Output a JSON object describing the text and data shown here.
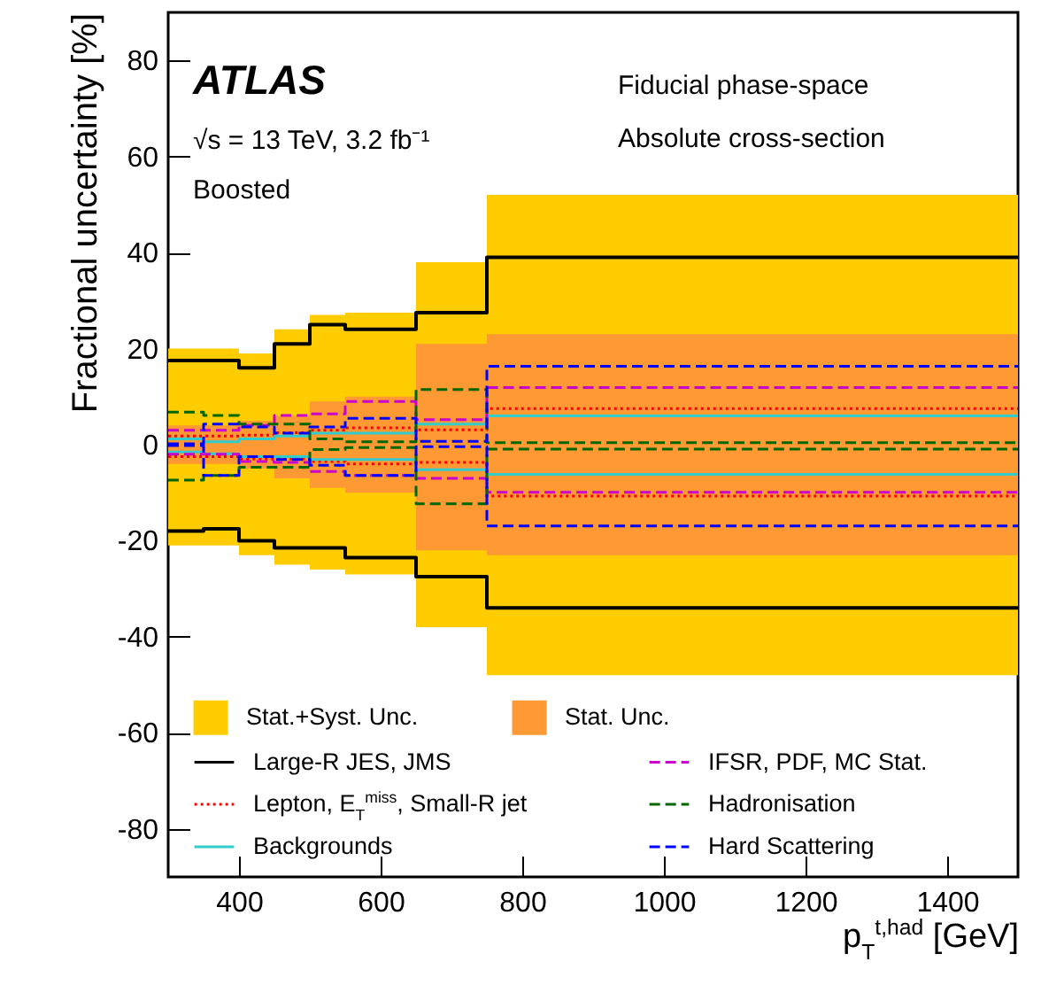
{
  "chart_data": {
    "type": "step",
    "xlabel": "p$_{T}$$^{t,had}$ [GeV]",
    "ylabel": "Fractional uncertainty [%]",
    "annotations": [
      "ATLAS",
      "√s = 13 TeV, 3.2 fb⁻¹",
      "Boosted",
      "Fiducial phase-space",
      "Absolute cross-section"
    ],
    "x": [
      300,
      350,
      400,
      450,
      500,
      550,
      650,
      750,
      1500
    ],
    "xlim": [
      300,
      1500
    ],
    "xticks": [
      400,
      600,
      800,
      1000,
      1200,
      1400
    ],
    "ylim": [
      -90,
      90
    ],
    "yticks": [
      -80,
      -60,
      -40,
      -20,
      0,
      20,
      40,
      60,
      80
    ],
    "grid": false,
    "legend": "bottom",
    "series": [
      {
        "name": "Stat.+Syst. Unc.",
        "type": "area",
        "color": "#ffcc00",
        "values": [
          20,
          20,
          19,
          24,
          27,
          27.5,
          38,
          52,
          52
        ]
      },
      {
        "type": "area",
        "color": "#ffcc00",
        "values": [
          -21,
          -21,
          -23,
          -25,
          -26,
          -27,
          -38,
          -48,
          -48
        ]
      },
      {
        "name": "Stat. Unc.",
        "type": "area",
        "color": "#ff9933",
        "values": [
          4,
          4,
          5,
          6,
          9,
          10,
          21,
          23,
          23
        ]
      },
      {
        "type": "area",
        "color": "#ff9933",
        "values": [
          -4,
          -4,
          -5,
          -7,
          -9,
          -10,
          -22,
          -23,
          -23
        ]
      },
      {
        "name": "Large-R JES, JMS",
        "color": "#000000",
        "line_style": "solid",
        "values": [
          17.5,
          17.5,
          16,
          21,
          25,
          24,
          27.5,
          39,
          39
        ]
      },
      {
        "color": "#000000",
        "line_style": "solid",
        "values": [
          -18,
          -17.5,
          -20,
          -21.5,
          -21.5,
          -23.5,
          -27.5,
          -34,
          -34
        ]
      },
      {
        "name": "Lepton, E$_{T}$$^{miss}$, Small-R jet",
        "color": "#ff0000",
        "line_style": "dotted",
        "values": [
          1.8,
          1.8,
          2,
          2.5,
          3,
          3.5,
          3.1,
          7.5,
          7.5
        ]
      },
      {
        "color": "#ff0000",
        "line_style": "dotted",
        "values": [
          -2.5,
          -2.5,
          -3,
          -3,
          -3.5,
          -4,
          -3.7,
          -10.7,
          -10.7
        ]
      },
      {
        "name": "Backgrounds",
        "color": "#33cccc",
        "line_style": "solid",
        "values": [
          1.2,
          0.6,
          1.2,
          1.8,
          2.4,
          2.4,
          4.3,
          6,
          6
        ]
      },
      {
        "color": "#33cccc",
        "line_style": "solid",
        "values": [
          -1.5,
          -1.9,
          -2.5,
          -2.5,
          -3.1,
          -3.1,
          -5.2,
          -6.2,
          -6.2
        ]
      },
      {
        "name": "IFSR, PDF, MC Stat.",
        "color": "#cc00cc",
        "line_style": "dashed",
        "values": [
          3,
          3,
          4,
          6.1,
          6.4,
          9,
          5.2,
          11.9,
          11.9
        ]
      },
      {
        "color": "#cc00cc",
        "line_style": "dashed",
        "values": [
          -2,
          -2,
          -3.5,
          -3.7,
          -5.6,
          -6.4,
          -7,
          -9.9,
          -9.9
        ]
      },
      {
        "name": "Hadronisation",
        "color": "#006600",
        "line_style": "dashed",
        "values": [
          6.8,
          6.1,
          4.3,
          4.3,
          1.2,
          0.6,
          11.5,
          0.4,
          0.4
        ]
      },
      {
        "color": "#006600",
        "line_style": "dashed",
        "values": [
          -7.4,
          -6.4,
          -4.7,
          -4.7,
          -1,
          -0.6,
          -12.3,
          -0.9,
          -0.9
        ]
      },
      {
        "name": "Hard Scattering",
        "color": "#0000ff",
        "line_style": "dashed",
        "values": [
          0.2,
          4.3,
          3.7,
          2.4,
          3.7,
          5.5,
          0.7,
          16.3,
          16.3
        ]
      },
      {
        "color": "#0000ff",
        "line_style": "dashed",
        "values": [
          -0.2,
          -6.4,
          -2.5,
          -3.1,
          -4.3,
          -6.4,
          -0.4,
          -16.9,
          -16.9
        ]
      }
    ]
  }
}
